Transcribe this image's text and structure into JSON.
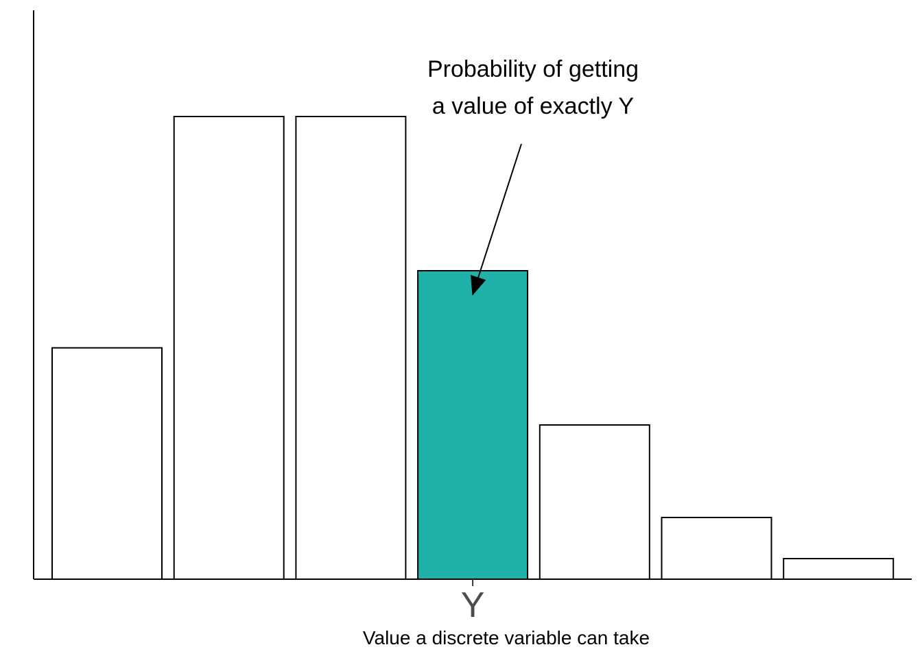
{
  "chart_data": {
    "type": "bar",
    "title": "",
    "ylabel": "",
    "xlabel": "Value a discrete variable can take",
    "categories": [
      "",
      "",
      "",
      "Y",
      "",
      "",
      ""
    ],
    "values": [
      0.45,
      0.9,
      0.9,
      0.6,
      0.3,
      0.12,
      0.04
    ],
    "ylim": [
      0,
      1
    ],
    "highlight_index": 3,
    "grid": false,
    "colors": {
      "default_fill": "#ffffff",
      "highlight_fill": "#20b2aa",
      "stroke": "#000000"
    },
    "annotation": {
      "lines": [
        "Probability of getting",
        "a value of exactly Y"
      ],
      "points_to_index": 3
    }
  }
}
